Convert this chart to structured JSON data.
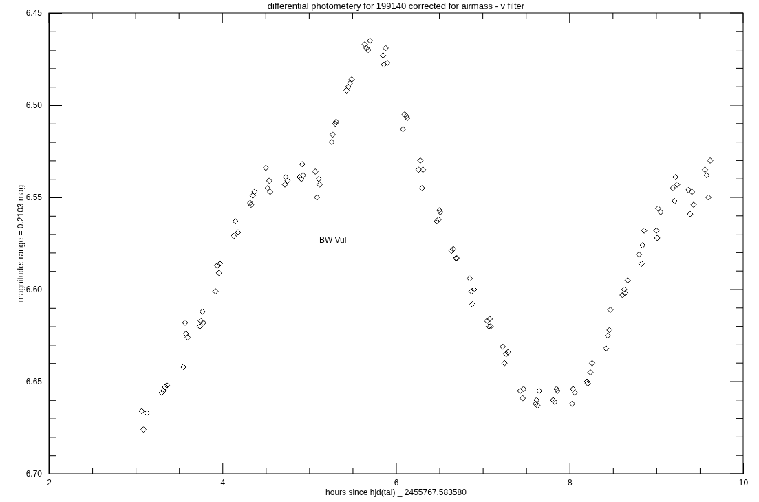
{
  "chart_data": {
    "type": "scatter",
    "title": "differential photometery for 199140 corrected for airmass - v filter",
    "xlabel": "hours since hjd(tai) _ 2455767.583580",
    "ylabel": "magnitude: range = 0.2103 mag",
    "annotations": [
      "BW Vul"
    ],
    "marker": "diamond",
    "color": "#000000",
    "xlim": [
      2,
      10
    ],
    "ylim": [
      6.7,
      6.45
    ],
    "xticks": [
      2,
      {
        "value": 2.5,
        "label": null
      },
      {
        "value": 3,
        "label": null
      },
      {
        "value": 3.5,
        "label": null
      },
      4,
      {
        "value": 4.5,
        "label": null
      },
      {
        "value": 5,
        "label": null
      },
      {
        "value": 5.5,
        "label": null
      },
      6,
      {
        "value": 6.5,
        "label": null
      },
      {
        "value": 7,
        "label": null
      },
      {
        "value": 7.5,
        "label": null
      },
      8,
      {
        "value": 8.5,
        "label": null
      },
      {
        "value": 9,
        "label": null
      },
      {
        "value": 9.5,
        "label": null
      },
      10
    ],
    "yticks": [
      6.45,
      {
        "value": 6.46,
        "label": null
      },
      {
        "value": 6.47,
        "label": null
      },
      {
        "value": 6.48,
        "label": null
      },
      {
        "value": 6.49,
        "label": null
      },
      {
        "value": 6.5,
        "label": "6.50"
      },
      {
        "value": 6.51,
        "label": null
      },
      {
        "value": 6.52,
        "label": null
      },
      {
        "value": 6.53,
        "label": null
      },
      {
        "value": 6.54,
        "label": null
      },
      6.55,
      {
        "value": 6.56,
        "label": null
      },
      {
        "value": 6.57,
        "label": null
      },
      {
        "value": 6.58,
        "label": null
      },
      {
        "value": 6.59,
        "label": null
      },
      {
        "value": 6.6,
        "label": "6.60"
      },
      {
        "value": 6.61,
        "label": null
      },
      {
        "value": 6.62,
        "label": null
      },
      {
        "value": 6.63,
        "label": null
      },
      {
        "value": 6.64,
        "label": null
      },
      6.65,
      {
        "value": 6.66,
        "label": null
      },
      {
        "value": 6.67,
        "label": null
      },
      {
        "value": 6.68,
        "label": null
      },
      {
        "value": 6.69,
        "label": null
      },
      {
        "value": 6.7,
        "label": "6.70"
      }
    ],
    "x": [
      3.07,
      3.09,
      3.13,
      3.3,
      3.32,
      3.34,
      3.36,
      3.55,
      3.57,
      3.58,
      3.6,
      3.74,
      3.75,
      3.77,
      3.78,
      3.92,
      3.94,
      3.96,
      3.97,
      4.13,
      4.15,
      4.18,
      4.32,
      4.33,
      4.35,
      4.37,
      4.5,
      4.52,
      4.54,
      4.55,
      4.72,
      4.73,
      4.75,
      4.89,
      4.91,
      4.92,
      4.93,
      5.07,
      5.09,
      5.11,
      5.12,
      5.26,
      5.27,
      5.3,
      5.31,
      5.43,
      5.45,
      5.47,
      5.49,
      5.64,
      5.66,
      5.68,
      5.7,
      5.85,
      5.86,
      5.88,
      5.9,
      6.08,
      6.1,
      6.12,
      6.13,
      6.26,
      6.28,
      6.3,
      6.31,
      6.47,
      6.49,
      6.5,
      6.51,
      6.64,
      6.66,
      6.69,
      6.7,
      6.85,
      6.87,
      6.88,
      6.9,
      7.05,
      7.07,
      7.08,
      7.09,
      7.23,
      7.25,
      7.27,
      7.29,
      7.43,
      7.46,
      7.47,
      7.61,
      7.62,
      7.63,
      7.65,
      7.81,
      7.83,
      7.85,
      7.86,
      8.03,
      8.04,
      8.06,
      8.2,
      8.21,
      8.24,
      8.26,
      8.42,
      8.44,
      8.46,
      8.47,
      8.61,
      8.63,
      8.64,
      8.67,
      8.8,
      8.83,
      8.84,
      8.86,
      9.0,
      9.01,
      9.02,
      9.05,
      9.19,
      9.21,
      9.22,
      9.24,
      9.37,
      9.39,
      9.41,
      9.43,
      9.56,
      9.58,
      9.6,
      9.62
    ],
    "values": [
      6.666,
      6.676,
      6.667,
      6.656,
      6.655,
      6.653,
      6.652,
      6.642,
      6.618,
      6.624,
      6.626,
      6.62,
      6.617,
      6.612,
      6.618,
      6.601,
      6.587,
      6.591,
      6.586,
      6.571,
      6.563,
      6.569,
      6.553,
      6.554,
      6.549,
      6.547,
      6.534,
      6.545,
      6.541,
      6.547,
      6.543,
      6.539,
      6.541,
      6.539,
      6.54,
      6.532,
      6.538,
      6.536,
      6.55,
      6.54,
      6.543,
      6.52,
      6.516,
      6.51,
      6.509,
      6.492,
      6.49,
      6.488,
      6.486,
      6.467,
      6.469,
      6.47,
      6.465,
      6.473,
      6.478,
      6.469,
      6.477,
      6.513,
      6.505,
      6.506,
      6.507,
      6.535,
      6.53,
      6.545,
      6.535,
      6.563,
      6.562,
      6.557,
      6.558,
      6.579,
      6.578,
      6.583,
      6.583,
      6.594,
      6.601,
      6.608,
      6.6,
      6.617,
      6.62,
      6.616,
      6.62,
      6.631,
      6.64,
      6.635,
      6.634,
      6.655,
      6.659,
      6.654,
      6.662,
      6.66,
      6.663,
      6.655,
      6.66,
      6.661,
      6.654,
      6.655,
      6.662,
      6.654,
      6.656,
      6.65,
      6.651,
      6.645,
      6.64,
      6.632,
      6.625,
      6.622,
      6.611,
      6.603,
      6.6,
      6.602,
      6.595,
      6.581,
      6.586,
      6.576,
      6.568,
      6.568,
      6.572,
      6.556,
      6.558,
      6.545,
      6.552,
      6.539,
      6.543,
      6.546,
      6.559,
      6.547,
      6.554,
      6.535,
      6.538,
      6.55,
      6.53
    ]
  }
}
